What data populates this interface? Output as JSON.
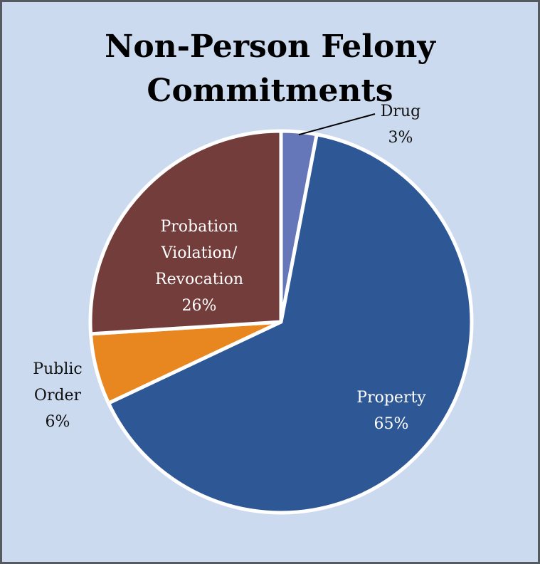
{
  "chart_data": {
    "type": "pie",
    "title_lines": [
      "Non-Person Felony",
      "Commitments"
    ],
    "start_angle_deg": 0,
    "slices": [
      {
        "label": "Drug",
        "value": 3,
        "value_label": "3%",
        "color": "#6577b8",
        "text_color": "#111111"
      },
      {
        "label": "Property",
        "value": 65,
        "value_label": "65%",
        "color": "#2e5895",
        "text_color": "#ffffff"
      },
      {
        "label": "Public Order",
        "value": 6,
        "value_label": "6%",
        "color": "#e8861f",
        "text_color": "#111111"
      },
      {
        "label": "Probation Violation/ Revocation",
        "value": 26,
        "value_label": "26%",
        "color": "#733d3b",
        "text_color": "#ffffff"
      }
    ],
    "legend": "none",
    "slice_border_color": "#ffffff",
    "background_color": "#ccdaef",
    "frame_color": "#555a60"
  }
}
